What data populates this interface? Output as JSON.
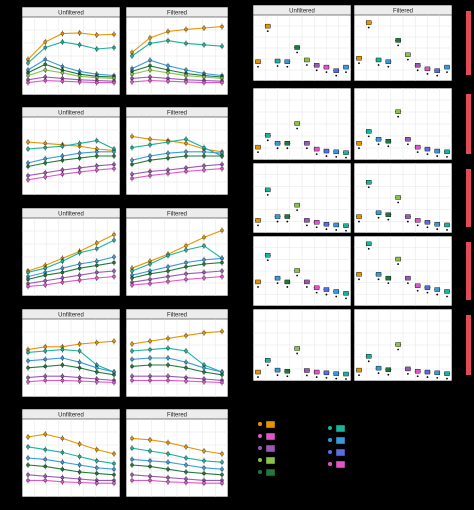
{
  "colors": {
    "background": "#000000",
    "panel_bg": "#ffffff",
    "grid": "#dddddd",
    "strip_bg": "#ececec",
    "series_palette": [
      "#e69500",
      "#1ab39b",
      "#3a9ad9",
      "#1f7a3a",
      "#8bc34a",
      "#9b59b6",
      "#e056c8",
      "#5b6ee1"
    ]
  },
  "facet_labels": {
    "left": "Unfiltered",
    "right": "Filtered"
  },
  "chart_data": [
    {
      "type": "line",
      "row": 1,
      "facets": [
        "Unfiltered",
        "Filtered"
      ],
      "x": [
        1,
        2,
        3,
        4,
        5,
        6
      ],
      "series": [
        {
          "color": "#e69500",
          "values": [
            [
              45,
              70,
              82,
              83,
              80,
              81
            ],
            [
              55,
              76,
              85,
              88,
              90,
              92
            ]
          ]
        },
        {
          "color": "#1ab39b",
          "values": [
            [
              40,
              62,
              70,
              66,
              60,
              62
            ],
            [
              50,
              68,
              72,
              68,
              66,
              64
            ]
          ]
        },
        {
          "color": "#3a9ad9",
          "values": [
            [
              30,
              45,
              35,
              28,
              24,
              22
            ],
            [
              32,
              44,
              36,
              30,
              25,
              22
            ]
          ]
        },
        {
          "color": "#1f7a3a",
          "values": [
            [
              26,
              38,
              30,
              24,
              21,
              20
            ],
            [
              28,
              36,
              30,
              25,
              22,
              20
            ]
          ]
        },
        {
          "color": "#8bc34a",
          "values": [
            [
              22,
              30,
              26,
              21,
              19,
              18
            ],
            [
              24,
              30,
              26,
              22,
              20,
              18
            ]
          ]
        },
        {
          "color": "#9b59b6",
          "values": [
            [
              16,
              20,
              18,
              16,
              15,
              14
            ],
            [
              18,
              20,
              18,
              16,
              15,
              14
            ]
          ]
        },
        {
          "color": "#e056c8",
          "values": [
            [
              12,
              15,
              14,
              13,
              12,
              12
            ],
            [
              13,
              15,
              14,
              13,
              12,
              12
            ]
          ]
        }
      ],
      "ylim": [
        0,
        100
      ]
    },
    {
      "type": "line",
      "row": 2,
      "facets": [
        "Unfiltered",
        "Filtered"
      ],
      "x": [
        1,
        2,
        3,
        4,
        5,
        6
      ],
      "series": [
        {
          "color": "#e69500",
          "values": [
            [
              70,
              68,
              66,
              64,
              60,
              58
            ],
            [
              78,
              74,
              72,
              68,
              60,
              56
            ]
          ]
        },
        {
          "color": "#1ab39b",
          "values": [
            [
              60,
              62,
              64,
              68,
              72,
              60
            ],
            [
              62,
              66,
              70,
              74,
              62,
              50
            ]
          ]
        },
        {
          "color": "#3a9ad9",
          "values": [
            [
              40,
              46,
              50,
              54,
              56,
              56
            ],
            [
              44,
              50,
              54,
              56,
              56,
              54
            ]
          ]
        },
        {
          "color": "#1f7a3a",
          "values": [
            [
              35,
              40,
              44,
              47,
              50,
              50
            ],
            [
              38,
              44,
              47,
              50,
              50,
              50
            ]
          ]
        },
        {
          "color": "#9b59b6",
          "values": [
            [
              22,
              26,
              30,
              33,
              36,
              38
            ],
            [
              24,
              28,
              30,
              33,
              36,
              38
            ]
          ]
        },
        {
          "color": "#e056c8",
          "values": [
            [
              16,
              20,
              24,
              27,
              30,
              32
            ],
            [
              18,
              22,
              25,
              28,
              30,
              32
            ]
          ]
        }
      ],
      "ylim": [
        0,
        100
      ]
    },
    {
      "type": "line",
      "row": 3,
      "facets": [
        "Unfiltered",
        "Filtered"
      ],
      "x": [
        1,
        2,
        3,
        4,
        5,
        6
      ],
      "series": [
        {
          "color": "#e69500",
          "values": [
            [
              30,
              38,
              48,
              58,
              70,
              82
            ],
            [
              34,
              44,
              54,
              66,
              78,
              88
            ]
          ]
        },
        {
          "color": "#1ab39b",
          "values": [
            [
              28,
              34,
              44,
              56,
              62,
              74
            ],
            [
              30,
              40,
              52,
              60,
              66,
              48
            ]
          ]
        },
        {
          "color": "#3a9ad9",
          "values": [
            [
              22,
              28,
              34,
              40,
              44,
              50
            ],
            [
              24,
              30,
              36,
              42,
              46,
              48
            ]
          ]
        },
        {
          "color": "#1f7a3a",
          "values": [
            [
              18,
              24,
              28,
              34,
              38,
              42
            ],
            [
              20,
              26,
              30,
              36,
              40,
              42
            ]
          ]
        },
        {
          "color": "#9b59b6",
          "values": [
            [
              12,
              16,
              20,
              24,
              28,
              30
            ],
            [
              14,
              18,
              22,
              26,
              28,
              30
            ]
          ]
        },
        {
          "color": "#e056c8",
          "values": [
            [
              8,
              10,
              14,
              17,
              20,
              22
            ],
            [
              10,
              12,
              15,
              18,
              20,
              22
            ]
          ]
        }
      ],
      "ylim": [
        0,
        100
      ]
    },
    {
      "type": "line",
      "row": 4,
      "facets": [
        "Unfiltered",
        "Filtered"
      ],
      "x": [
        1,
        2,
        3,
        4,
        5,
        6
      ],
      "series": [
        {
          "color": "#e69500",
          "values": [
            [
              62,
              66,
              66,
              70,
              72,
              74
            ],
            [
              70,
              74,
              78,
              82,
              86,
              88
            ]
          ]
        },
        {
          "color": "#1ab39b",
          "values": [
            [
              58,
              60,
              62,
              60,
              40,
              30
            ],
            [
              60,
              62,
              64,
              60,
              40,
              30
            ]
          ]
        },
        {
          "color": "#3a9ad9",
          "values": [
            [
              46,
              48,
              50,
              44,
              36,
              30
            ],
            [
              48,
              50,
              50,
              44,
              36,
              30
            ]
          ]
        },
        {
          "color": "#1f7a3a",
          "values": [
            [
              36,
              38,
              40,
              36,
              30,
              26
            ],
            [
              38,
              40,
              40,
              36,
              30,
              26
            ]
          ]
        },
        {
          "color": "#9b59b6",
          "values": [
            [
              22,
              24,
              24,
              22,
              20,
              18
            ],
            [
              24,
              24,
              24,
              22,
              20,
              18
            ]
          ]
        },
        {
          "color": "#e056c8",
          "values": [
            [
              16,
              18,
              18,
              17,
              16,
              15
            ],
            [
              18,
              18,
              18,
              17,
              16,
              15
            ]
          ]
        }
      ],
      "ylim": [
        0,
        100
      ]
    },
    {
      "type": "line",
      "row": 5,
      "facets": [
        "Unfiltered",
        "Filtered"
      ],
      "x": [
        1,
        2,
        3,
        4,
        5,
        6
      ],
      "series": [
        {
          "color": "#e69500",
          "values": [
            [
              80,
              84,
              78,
              70,
              62,
              56
            ],
            [
              78,
              76,
              72,
              66,
              60,
              56
            ]
          ]
        },
        {
          "color": "#1ab39b",
          "values": [
            [
              66,
              62,
              58,
              52,
              46,
              42
            ],
            [
              64,
              60,
              56,
              50,
              46,
              44
            ]
          ]
        },
        {
          "color": "#3a9ad9",
          "values": [
            [
              50,
              48,
              44,
              40,
              36,
              34
            ],
            [
              48,
              46,
              44,
              40,
              36,
              34
            ]
          ]
        },
        {
          "color": "#1f7a3a",
          "values": [
            [
              40,
              38,
              34,
              30,
              28,
              26
            ],
            [
              40,
              38,
              34,
              30,
              28,
              26
            ]
          ]
        },
        {
          "color": "#9b59b6",
          "values": [
            [
              26,
              24,
              22,
              20,
              18,
              18
            ],
            [
              26,
              24,
              22,
              20,
              18,
              18
            ]
          ]
        },
        {
          "color": "#e056c8",
          "values": [
            [
              18,
              18,
              16,
              15,
              14,
              14
            ],
            [
              18,
              18,
              16,
              15,
              14,
              14
            ]
          ]
        }
      ],
      "ylim": [
        0,
        100
      ]
    },
    {
      "type": "scatter",
      "row": 1,
      "side": "right",
      "facets": [
        "Unfiltered",
        "Filtered"
      ],
      "x": [
        1,
        2,
        3,
        4,
        5,
        6,
        7,
        8,
        9,
        10
      ],
      "colors": [
        "#e69500",
        "#e69500",
        "#1ab39b",
        "#3a9ad9",
        "#1f7a3a",
        "#8bc34a",
        "#9b59b6",
        "#e056c8",
        "#5b6ee1",
        "#3a9ad9"
      ],
      "values": [
        [
          400,
          1400,
          420,
          400,
          800,
          450,
          300,
          250,
          150,
          250
        ],
        [
          500,
          1500,
          450,
          400,
          1000,
          600,
          300,
          200,
          150,
          250
        ]
      ],
      "y_ticks": [
        "50",
        "100",
        "200",
        "400",
        "600",
        "800",
        "1000"
      ],
      "ylim": [
        0,
        1600
      ]
    },
    {
      "type": "scatter",
      "row": 2,
      "side": "right",
      "facets": [
        "Unfiltered",
        "Filtered"
      ],
      "x": [
        1,
        2,
        3,
        4,
        5,
        6,
        7,
        8,
        9,
        10
      ],
      "colors": [
        "#e69500",
        "#1ab39b",
        "#3a9ad9",
        "#1f7a3a",
        "#8bc34a",
        "#9b59b6",
        "#e056c8",
        "#5b6ee1",
        "#3a9ad9",
        "#1ab39b"
      ],
      "values": [
        [
          200,
          500,
          300,
          300,
          800,
          300,
          150,
          100,
          80,
          60
        ],
        [
          300,
          600,
          400,
          350,
          1100,
          400,
          200,
          150,
          100,
          80
        ]
      ],
      "y_ticks": [
        "50",
        "100",
        "200",
        "400",
        "600",
        "800",
        "1000",
        "1200",
        "1400",
        "1600"
      ],
      "ylim": [
        0,
        1600
      ]
    },
    {
      "type": "scatter",
      "row": 3,
      "side": "right",
      "facets": [
        "Unfiltered",
        "Filtered"
      ],
      "x": [
        1,
        2,
        3,
        4,
        5,
        6,
        7,
        8,
        9,
        10
      ],
      "colors": [
        "#e69500",
        "#1ab39b",
        "#3a9ad9",
        "#1f7a3a",
        "#8bc34a",
        "#9b59b6",
        "#e056c8",
        "#5b6ee1",
        "#3a9ad9",
        "#1ab39b"
      ],
      "values": [
        [
          200,
          1000,
          300,
          300,
          600,
          200,
          150,
          100,
          80,
          60
        ],
        [
          300,
          1200,
          400,
          350,
          800,
          300,
          200,
          150,
          100,
          80
        ]
      ],
      "ylim": [
        0,
        1600
      ]
    },
    {
      "type": "scatter",
      "row": 4,
      "side": "right",
      "facets": [
        "Unfiltered",
        "Filtered"
      ],
      "x": [
        1,
        2,
        3,
        4,
        5,
        6,
        7,
        8,
        9,
        10
      ],
      "colors": [
        "#e69500",
        "#1ab39b",
        "#3a9ad9",
        "#1f7a3a",
        "#8bc34a",
        "#9b59b6",
        "#e056c8",
        "#5b6ee1",
        "#3a9ad9",
        "#1ab39b"
      ],
      "values": [
        [
          500,
          1200,
          600,
          500,
          800,
          500,
          350,
          300,
          250,
          200
        ],
        [
          700,
          1500,
          700,
          600,
          1100,
          600,
          400,
          350,
          300,
          250
        ]
      ],
      "ylim": [
        0,
        1600
      ]
    },
    {
      "type": "scatter",
      "row": 5,
      "side": "right",
      "facets": [
        "Unfiltered",
        "Filtered"
      ],
      "x": [
        1,
        2,
        3,
        4,
        5,
        6,
        7,
        8,
        9,
        10
      ],
      "colors": [
        "#e69500",
        "#1ab39b",
        "#3a9ad9",
        "#1f7a3a",
        "#8bc34a",
        "#9b59b6",
        "#e056c8",
        "#5b6ee1",
        "#3a9ad9",
        "#1ab39b"
      ],
      "values": [
        [
          100,
          400,
          150,
          120,
          700,
          140,
          100,
          80,
          60,
          50
        ],
        [
          150,
          500,
          200,
          160,
          800,
          180,
          120,
          100,
          80,
          60
        ]
      ],
      "ylim": [
        0,
        1600
      ]
    }
  ],
  "legend_colors": [
    "#e69500",
    "#e056c8",
    "#9b59b6",
    "#8bc34a",
    "#1f7a3a",
    "#1ab39b",
    "#3a9ad9",
    "#5b6ee1",
    "#e056c8"
  ]
}
